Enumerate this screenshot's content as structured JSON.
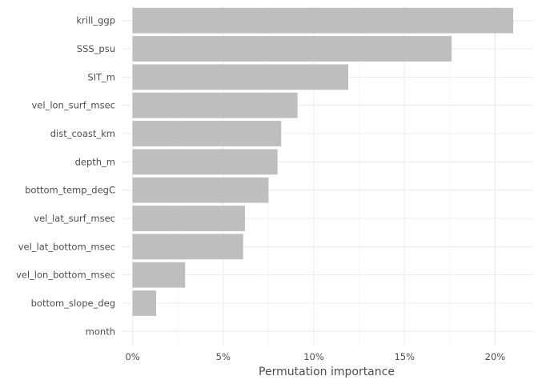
{
  "chart_data": {
    "type": "bar",
    "orientation": "horizontal",
    "categories": [
      "krill_ggp",
      "SSS_psu",
      "SIT_m",
      "vel_lon_surf_msec",
      "dist_coast_km",
      "depth_m",
      "bottom_temp_degC",
      "vel_lat_surf_msec",
      "vel_lat_bottom_msec",
      "vel_lon_bottom_msec",
      "bottom_slope_deg",
      "month"
    ],
    "values": [
      21.0,
      17.6,
      11.9,
      9.1,
      8.2,
      8.0,
      7.5,
      6.2,
      6.1,
      2.9,
      1.3,
      0.0
    ],
    "xlabel": "Permutation importance",
    "ylabel": "",
    "xlim": [
      -0.6,
      22.1
    ],
    "x_ticks": [
      0,
      5,
      10,
      15,
      20
    ],
    "x_tick_labels": [
      "0%",
      "5%",
      "10%",
      "15%",
      "20%"
    ],
    "grid": true,
    "bar_color": "#bebebe",
    "grid_color": "#ebebeb",
    "text_color": "#4d4d4d"
  }
}
